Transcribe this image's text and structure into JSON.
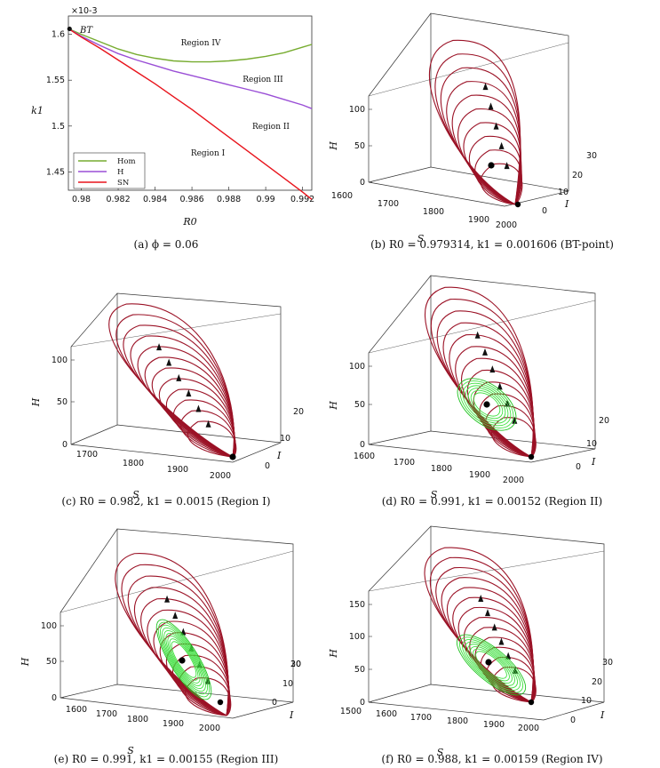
{
  "chart_data": [
    {
      "type": "line",
      "panel": "a",
      "caption": "(a) ϕ = 0.06",
      "xlabel": "R0",
      "ylabel": "k1",
      "y_exponent_label": "×10-3",
      "xlim": [
        0.9793,
        0.9925
      ],
      "ylim": [
        1.43,
        1.62
      ],
      "xticks": [
        "0.98",
        "0.982",
        "0.984",
        "0.986",
        "0.988",
        "0.99",
        "0.992"
      ],
      "xtick_values": [
        0.98,
        0.982,
        0.984,
        0.986,
        0.988,
        0.99,
        0.992
      ],
      "yticks": [
        "1.45",
        "1.5",
        "1.55",
        "1.6"
      ],
      "ytick_values": [
        1.45,
        1.5,
        1.55,
        1.6
      ],
      "legend": [
        "Hom",
        "H",
        "SN"
      ],
      "point_label": "BT",
      "bt_point": {
        "x": 0.979314,
        "y": 1.606
      },
      "region_labels": [
        "Region IV",
        "Region III",
        "Region II",
        "Region I"
      ],
      "series": [
        {
          "name": "Hom",
          "color": "#77ac30",
          "x": [
            0.979314,
            0.98,
            0.981,
            0.982,
            0.983,
            0.984,
            0.985,
            0.986,
            0.987,
            0.988,
            0.989,
            0.99,
            0.991,
            0.992,
            0.9925
          ],
          "y": [
            1.606,
            1.6,
            1.592,
            1.584,
            1.578,
            1.574,
            1.571,
            1.57,
            1.57,
            1.571,
            1.573,
            1.576,
            1.58,
            1.586,
            1.589
          ]
        },
        {
          "name": "H",
          "color": "#9a4fd6",
          "x": [
            0.979314,
            0.98,
            0.981,
            0.982,
            0.983,
            0.984,
            0.985,
            0.986,
            0.987,
            0.988,
            0.989,
            0.99,
            0.991,
            0.992,
            0.9925
          ],
          "y": [
            1.606,
            1.598,
            1.588,
            1.579,
            1.572,
            1.566,
            1.56,
            1.555,
            1.55,
            1.545,
            1.54,
            1.535,
            1.529,
            1.523,
            1.519
          ]
        },
        {
          "name": "SN",
          "color": "#e8141c",
          "x": [
            0.979314,
            0.98,
            0.981,
            0.982,
            0.983,
            0.984,
            0.985,
            0.986,
            0.987,
            0.988,
            0.989,
            0.99,
            0.991,
            0.992,
            0.9925
          ],
          "y": [
            1.606,
            1.597,
            1.585,
            1.572,
            1.559,
            1.546,
            1.532,
            1.518,
            1.503,
            1.488,
            1.473,
            1.458,
            1.443,
            1.428,
            1.42
          ]
        }
      ]
    },
    {
      "type": "3d-phase-portrait",
      "panel": "b",
      "caption": "(b) R0 = 0.979314, k1 = 0.001606 (BT-point)",
      "xlabel": "S",
      "ylabel": "I",
      "zlabel": "H",
      "sticks": [
        "1600",
        "1700",
        "1800",
        "1900",
        "2000"
      ],
      "iticks": [
        "0",
        "10",
        "20",
        "30"
      ],
      "hticks": [
        "0",
        "50",
        "100"
      ],
      "has_limit_cycle": false
    },
    {
      "type": "3d-phase-portrait",
      "panel": "c",
      "caption": "(c) R0 = 0.982, k1 = 0.0015 (Region I)",
      "xlabel": "S",
      "ylabel": "I",
      "zlabel": "H",
      "sticks": [
        "1700",
        "1800",
        "1900",
        "2000"
      ],
      "iticks": [
        "0",
        "10",
        "20"
      ],
      "hticks": [
        "0",
        "50",
        "100"
      ],
      "has_limit_cycle": false
    },
    {
      "type": "3d-phase-portrait",
      "panel": "d",
      "caption": "(d) R0 = 0.991, k1 = 0.00152 (Region II)",
      "xlabel": "S",
      "ylabel": "I",
      "zlabel": "H",
      "sticks": [
        "1600",
        "1700",
        "1800",
        "1900",
        "2000"
      ],
      "iticks": [
        "0",
        "10",
        "20"
      ],
      "hticks": [
        "0",
        "50",
        "100"
      ],
      "has_limit_cycle": true
    },
    {
      "type": "3d-phase-portrait",
      "panel": "e",
      "caption": "(e) R0 = 0.991, k1 = 0.00155 (Region III)",
      "xlabel": "S",
      "ylabel": "I",
      "zlabel": "H",
      "sticks": [
        "1600",
        "1700",
        "1800",
        "1900",
        "2000"
      ],
      "iticks": [
        "0",
        "10",
        "20",
        "30"
      ],
      "hticks": [
        "0",
        "50",
        "100"
      ],
      "has_limit_cycle": true
    },
    {
      "type": "3d-phase-portrait",
      "panel": "f",
      "caption": "(f) R0 = 0.988, k1 = 0.00159 (Region IV)",
      "xlabel": "S",
      "ylabel": "I",
      "zlabel": "H",
      "sticks": [
        "1500",
        "1600",
        "1700",
        "1800",
        "1900",
        "2000"
      ],
      "iticks": [
        "0",
        "10",
        "20",
        "30"
      ],
      "hticks": [
        "0",
        "50",
        "100",
        "150"
      ],
      "has_limit_cycle": true
    }
  ]
}
